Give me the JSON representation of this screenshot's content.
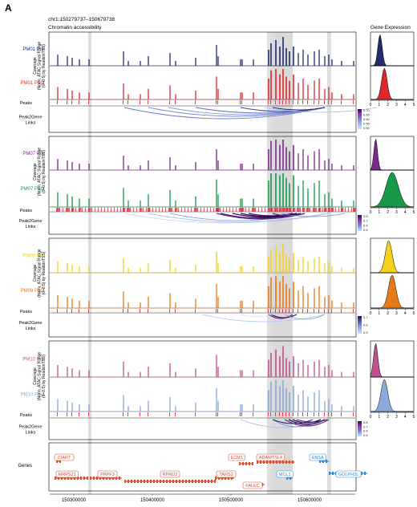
{
  "panel_letter": "A",
  "region": "chr1:150279737–150679738",
  "track_title": "Chromatin accessibility",
  "expr_title": "Gene Expression",
  "coverage_label": [
    "Coverage",
    "(Norm. ATAC Signal Range",
    "(0–0.5) by ReadsInTSS)"
  ],
  "peaks_label": "Peaks",
  "links_label": [
    "Peak2Gene",
    "Links"
  ],
  "genes_label": "Genes",
  "samples": [
    {
      "id": "PM01",
      "pre": "PM01 Pre",
      "post": "PM01 Post",
      "pre_color": "#1f2d6e",
      "post_color": "#e0262a",
      "scale": [
        "0.70",
        "0.65",
        "0.60",
        "0.55",
        "0.50"
      ],
      "scale_colors": [
        "#2a0a4a",
        "#8a3aa0",
        "#7a8ad8",
        "#aabce8",
        "#d6e2f4"
      ]
    },
    {
      "id": "PM07",
      "pre": "PM07 Pre",
      "post": "PM07 Post",
      "pre_color": "#7b2a8c",
      "post_color": "#169a4a",
      "scale": [
        "0.8",
        "0.7",
        "0.6",
        "0.5"
      ],
      "scale_colors": [
        "#2a0a4a",
        "#8a3aa0",
        "#7a8ad8",
        "#d6e2f4"
      ]
    },
    {
      "id": "PM09",
      "pre": "PM09 Pre",
      "post": "PM09 Post",
      "pre_color": "#f2d21a",
      "post_color": "#e67a18",
      "scale": [
        "0.7",
        "0.6",
        "0.5"
      ],
      "scale_colors": [
        "#2a0a4a",
        "#7a8ad8",
        "#d6e2f4"
      ]
    },
    {
      "id": "PM10",
      "pre": "PM10 Pre",
      "post": "PM10 Post",
      "pre_color": "#c0508e",
      "post_color": "#8aa8d8",
      "scale": [
        "0.8",
        "0.7",
        "0.6",
        "0.5"
      ],
      "scale_colors": [
        "#2a0a4a",
        "#8a3aa0",
        "#7a8ad8",
        "#d6e2f4"
      ]
    }
  ],
  "expr_ticks": [
    "0",
    "1",
    "2",
    "3",
    "4",
    "5"
  ],
  "genes": [
    "CIART",
    "MRPS21",
    "PRPF3",
    "RPRD2",
    "TARS2",
    "ECM1",
    "ADAMTSL4",
    "FALEC",
    "MCL1",
    "ENSA",
    "GOLPH3L"
  ],
  "gene_colors": {
    "plus": "#e04a2a",
    "minus": "#2a8ad8"
  },
  "x_axis_ticks": [
    "150300000",
    "150400000",
    "150500000",
    "150600000"
  ]
}
